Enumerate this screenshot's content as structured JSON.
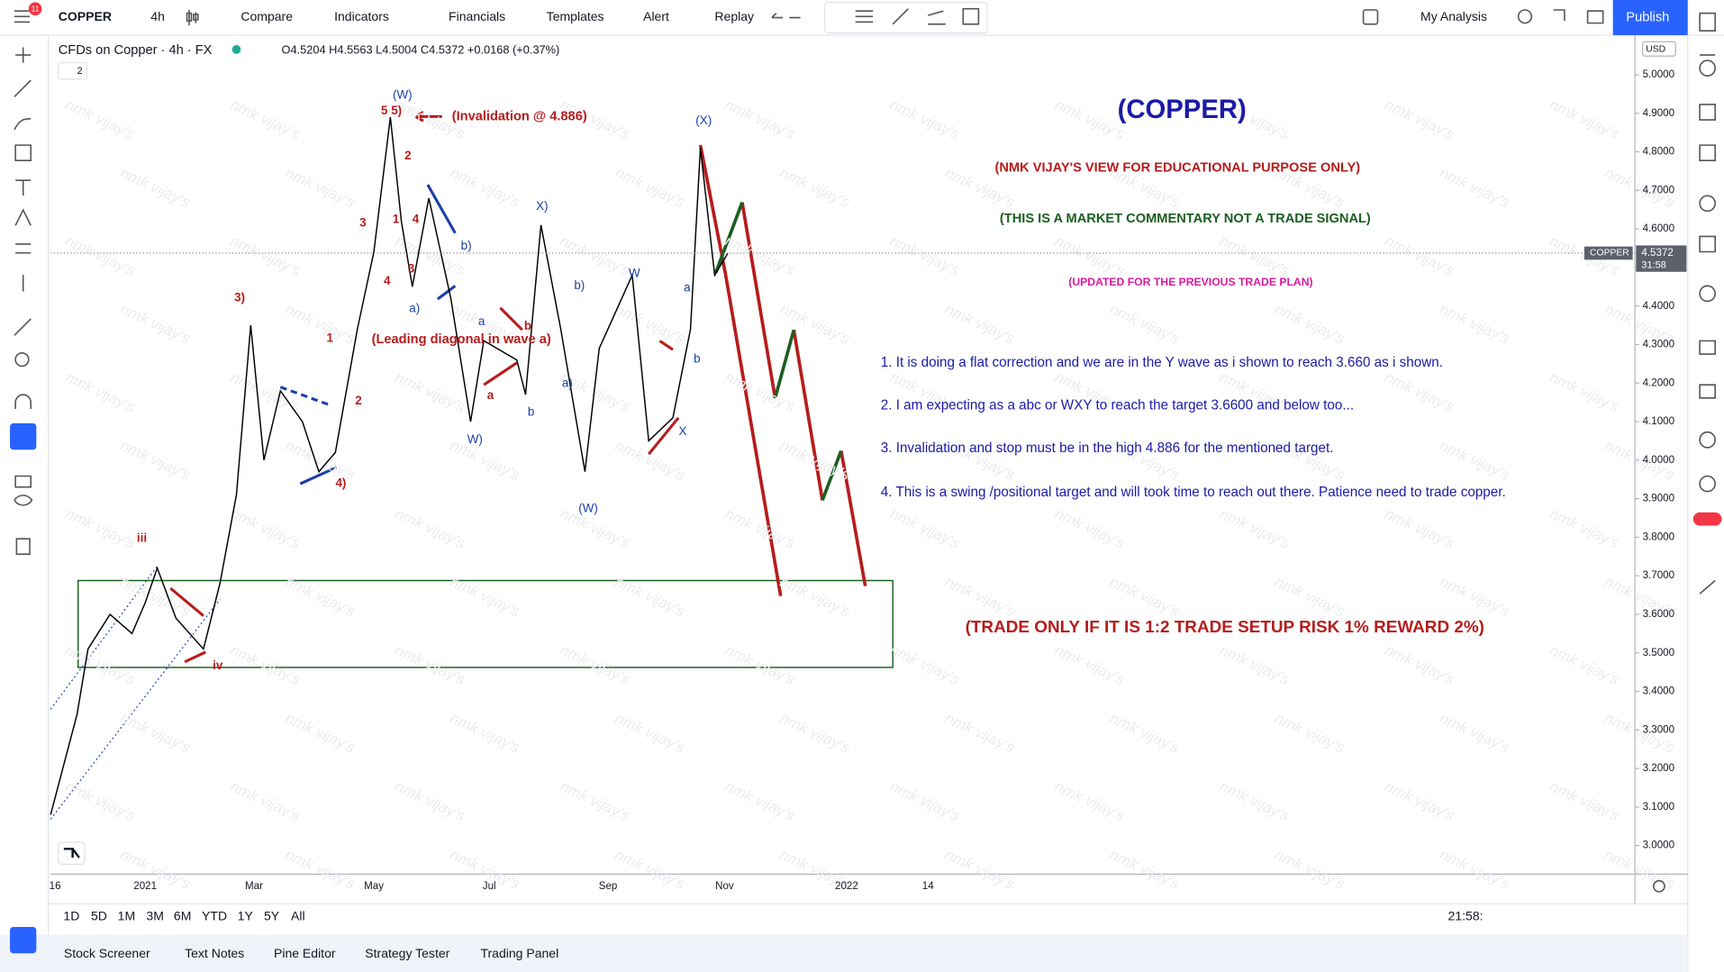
{
  "toolbar": {
    "badge": "11",
    "symbol": "COPPER",
    "interval": "4h",
    "buttons": [
      "Compare",
      "Indicators",
      "Financials",
      "Templates",
      "Alert",
      "Replay"
    ],
    "my_analysis": "My Analysis",
    "publish": "Publish"
  },
  "legend": {
    "title": "CFDs on Copper · 4h · FX",
    "ohlc": "O4.5204 H4.5563 L4.5004 C4.5372 +0.0168 (+0.37%)",
    "count": "2"
  },
  "price_axis": {
    "currency": "USD",
    "ticks": [
      {
        "value": 5,
        "label": "5.0000"
      },
      {
        "value": 4.9,
        "label": "4.9000"
      },
      {
        "value": 4.8,
        "label": "4.8000"
      },
      {
        "value": 4.7,
        "label": "4.7000"
      },
      {
        "value": 4.6,
        "label": "4.6000"
      },
      {
        "value": 4.5,
        "label": "4.5000"
      },
      {
        "value": 4.4,
        "label": "4.4000"
      },
      {
        "value": 4.3,
        "label": "4.3000"
      },
      {
        "value": 4.2,
        "label": "4.2000"
      },
      {
        "value": 4.1,
        "label": "4.1000"
      },
      {
        "value": 4,
        "label": "4.0000"
      },
      {
        "value": 3.9,
        "label": "3.9000"
      },
      {
        "value": 3.8,
        "label": "3.8000"
      },
      {
        "value": 3.7,
        "label": "3.7000"
      },
      {
        "value": 3.6,
        "label": "3.6000"
      },
      {
        "value": 3.5,
        "label": "3.5000"
      },
      {
        "value": 3.4,
        "label": "3.4000"
      },
      {
        "value": 3.3,
        "label": "3.3000"
      },
      {
        "value": 3.2,
        "label": "3.2000"
      },
      {
        "value": 3.1,
        "label": "3.1000"
      },
      {
        "value": 3,
        "label": "3.0000"
      }
    ],
    "last_price": {
      "value": 4.5372,
      "label": "4.5372"
    },
    "symbol_tag": "COPPER",
    "timer": "31:58"
  },
  "time_axis": [
    "16",
    "2021",
    "Mar",
    "May",
    "Jul",
    "Sep",
    "Nov",
    "2022",
    "14"
  ],
  "price_path": [
    3.08,
    3.34,
    3.51,
    3.6,
    3.55,
    3.63,
    3.72,
    3.59,
    3.51,
    3.68,
    3.91,
    4.35,
    4.0,
    4.18,
    4.1,
    3.97,
    4.02,
    4.34,
    4.54,
    4.89,
    4.62,
    4.45,
    4.68,
    4.42,
    4.1,
    4.31,
    4.26,
    4.17,
    4.61,
    4.34,
    3.97,
    4.29,
    4.48,
    4.05,
    4.11,
    4.34,
    4.81,
    4.48,
    4.5372
  ],
  "waves": {
    "red": [
      "5 5)",
      "2",
      "3",
      "1",
      "4",
      "3",
      "4",
      "3)",
      "1",
      "2",
      "4)",
      "iii",
      "iv",
      "a",
      "b"
    ],
    "blue": [
      "(W)",
      "X)",
      "b)",
      "a)",
      "a",
      "b",
      "W)",
      "b)",
      "a)",
      "W",
      "(W)",
      "(X)",
      "a",
      "b",
      "X"
    ]
  },
  "notes": {
    "invalidation": "(Invalidation @ 4.886)",
    "leading": "(Leading diagonal in wave a)",
    "title": "(COPPER)",
    "view": "(NMK VIJAY'S VIEW FOR EDUCATIONAL PURPOSE ONLY)",
    "commentary": "(THIS IS A MARKET COMMENTARY NOT A TRADE SIGNAL)",
    "updated": "(UPDATED FOR THE PREVIOUS TRADE PLAN)",
    "points": [
      "1. It is doing a flat correction and we are in the Y wave as i shown to reach 3.660 as i shown.",
      "2. I am expecting as a abc or WXY to reach the target 3.6600 and below too...",
      "3. Invalidation and stop must be in the high 4.886 for the mentioned target.",
      "4. This is a swing /positional target and will took time to reach out there. Patience need to trade copper."
    ],
    "rule": "(TRADE ONLY IF IT IS 1:2 TRADE SETUP RISK 1% REWARD 2%)",
    "watermark": "nmk vijay's"
  },
  "bottom": {
    "ranges": [
      "1D",
      "5D",
      "1M",
      "3M",
      "6M",
      "YTD",
      "1Y",
      "5Y",
      "All"
    ],
    "clock": "21:58:",
    "tabs": [
      "Stock Screener",
      "Text Notes",
      "Pine Editor",
      "Strategy Tester",
      "Trading Panel"
    ]
  }
}
